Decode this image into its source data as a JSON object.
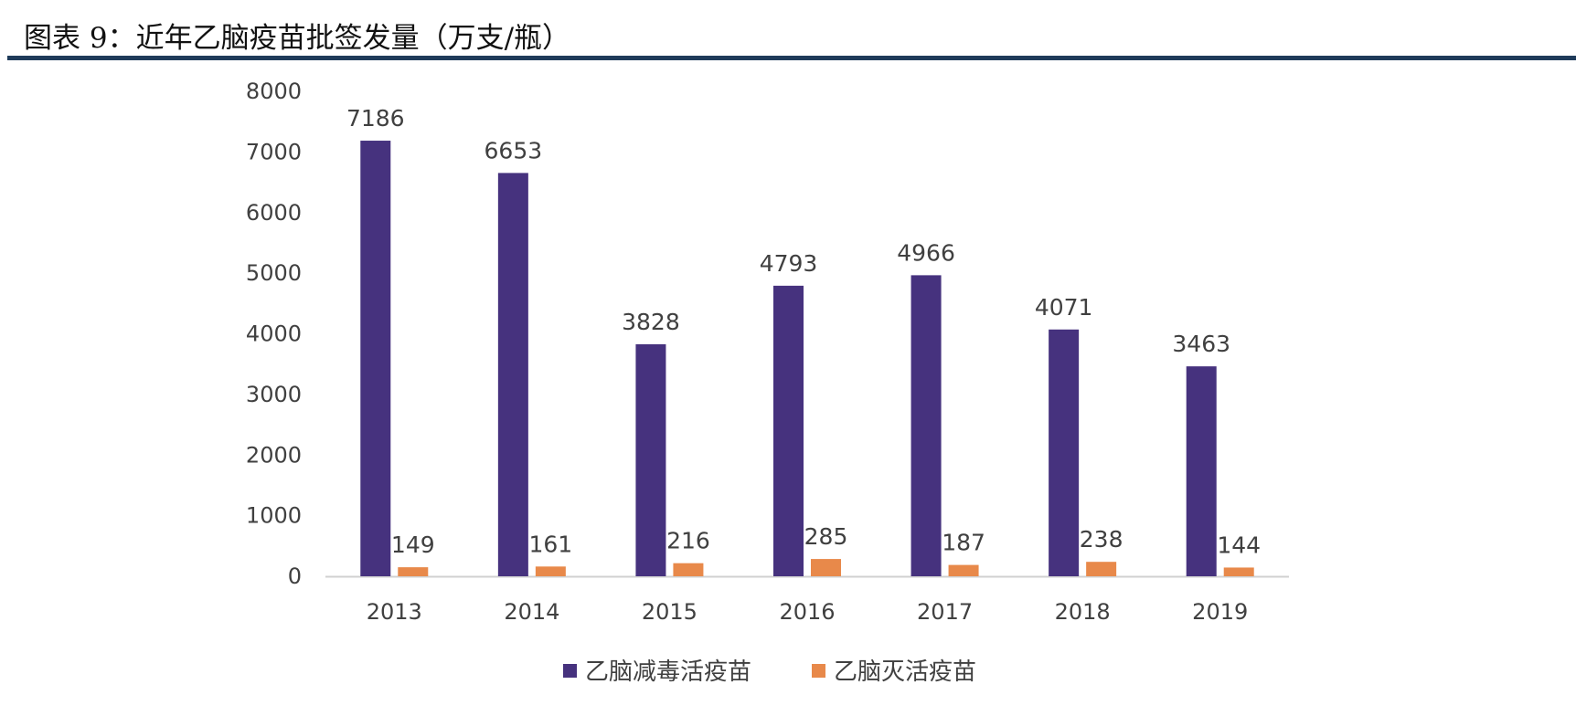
{
  "title": "图表 9：近年乙脑疫苗批签发量（万支/瓶）",
  "colors": {
    "series1": "#46327E",
    "series2": "#E8894A",
    "text": "#404040",
    "axis": "#D0D0D0",
    "title_rule": "#1F3B5A"
  },
  "chart_data": {
    "type": "bar",
    "title": "图表 9：近年乙脑疫苗批签发量（万支/瓶）",
    "xlabel": "",
    "ylabel": "",
    "ylim": [
      0,
      8000
    ],
    "yticks": [
      "0",
      "1000",
      "2000",
      "3000",
      "4000",
      "5000",
      "6000",
      "7000",
      "8000"
    ],
    "categories": [
      "2013",
      "2014",
      "2015",
      "2016",
      "2017",
      "2018",
      "2019"
    ],
    "series": [
      {
        "name": "乙脑减毒活疫苗",
        "values": [
          7186,
          6653,
          3828,
          4793,
          4966,
          4071,
          3463
        ]
      },
      {
        "name": "乙脑灭活疫苗",
        "values": [
          149,
          161,
          216,
          285,
          187,
          238,
          144
        ]
      }
    ],
    "grid": false,
    "legend": "bottom-center",
    "data_labels": true
  }
}
